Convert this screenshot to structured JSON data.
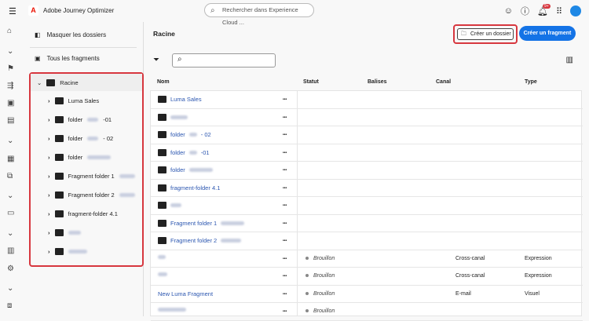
{
  "topbar": {
    "app_name": "Adobe Journey Optimizer",
    "search_placeholder": "Rechercher dans Experience Cloud ...",
    "notification_count": "9+"
  },
  "panel": {
    "hide_folders": "Masquer les dossiers",
    "all_fragments": "Tous les fragments",
    "root": "Racine",
    "tree": [
      {
        "label": "Luma Sales",
        "blur": 0
      },
      {
        "label": "folder",
        "suffix": "-01",
        "blur": 14
      },
      {
        "label": "folder",
        "suffix": "- 02",
        "blur": 14
      },
      {
        "label": "folder",
        "blur": 30
      },
      {
        "label": "Fragment folder 1",
        "blur": 20
      },
      {
        "label": "Fragment folder 2",
        "blur": 20
      },
      {
        "label": "fragment-folder 4.1",
        "blur": 0
      },
      {
        "label": "",
        "blur": 16
      },
      {
        "label": "",
        "blur": 24
      }
    ]
  },
  "main": {
    "title": "Racine",
    "create_folder": "Créer un dossier",
    "create_fragment": "Créer un fragment",
    "columns": [
      "Nom",
      "Statut",
      "Balises",
      "Canal",
      "Type"
    ],
    "rows": [
      {
        "name": "Luma Sales",
        "folder": true,
        "blur": 0
      },
      {
        "name": "",
        "folder": true,
        "blur": 22
      },
      {
        "name": "folder",
        "suffix": "- 02",
        "folder": true,
        "blur": 10
      },
      {
        "name": "folder",
        "suffix": "-01",
        "folder": true,
        "blur": 10
      },
      {
        "name": "folder",
        "folder": true,
        "blur": 30
      },
      {
        "name": "fragment-folder 4.1",
        "folder": true,
        "blur": 0
      },
      {
        "name": "",
        "folder": true,
        "blur": 14
      },
      {
        "name": "Fragment folder 1",
        "folder": true,
        "blur": 30
      },
      {
        "name": "Fragment folder 2",
        "folder": true,
        "blur": 26
      },
      {
        "name": "",
        "folder": false,
        "blur": 10,
        "status": "Brouillon",
        "canal": "Cross-canal",
        "type": "Expression"
      },
      {
        "name": "",
        "folder": false,
        "blur": 12,
        "status": "Brouillon",
        "canal": "Cross-canal",
        "type": "Expression"
      },
      {
        "name": "New Luma Fragment",
        "folder": false,
        "blur": 0,
        "status": "Brouillon",
        "canal": "E-mail",
        "type": "Visuel"
      },
      {
        "name": "",
        "folder": false,
        "blur": 36,
        "status": "Brouillon",
        "canal": "",
        "type": ""
      }
    ]
  }
}
